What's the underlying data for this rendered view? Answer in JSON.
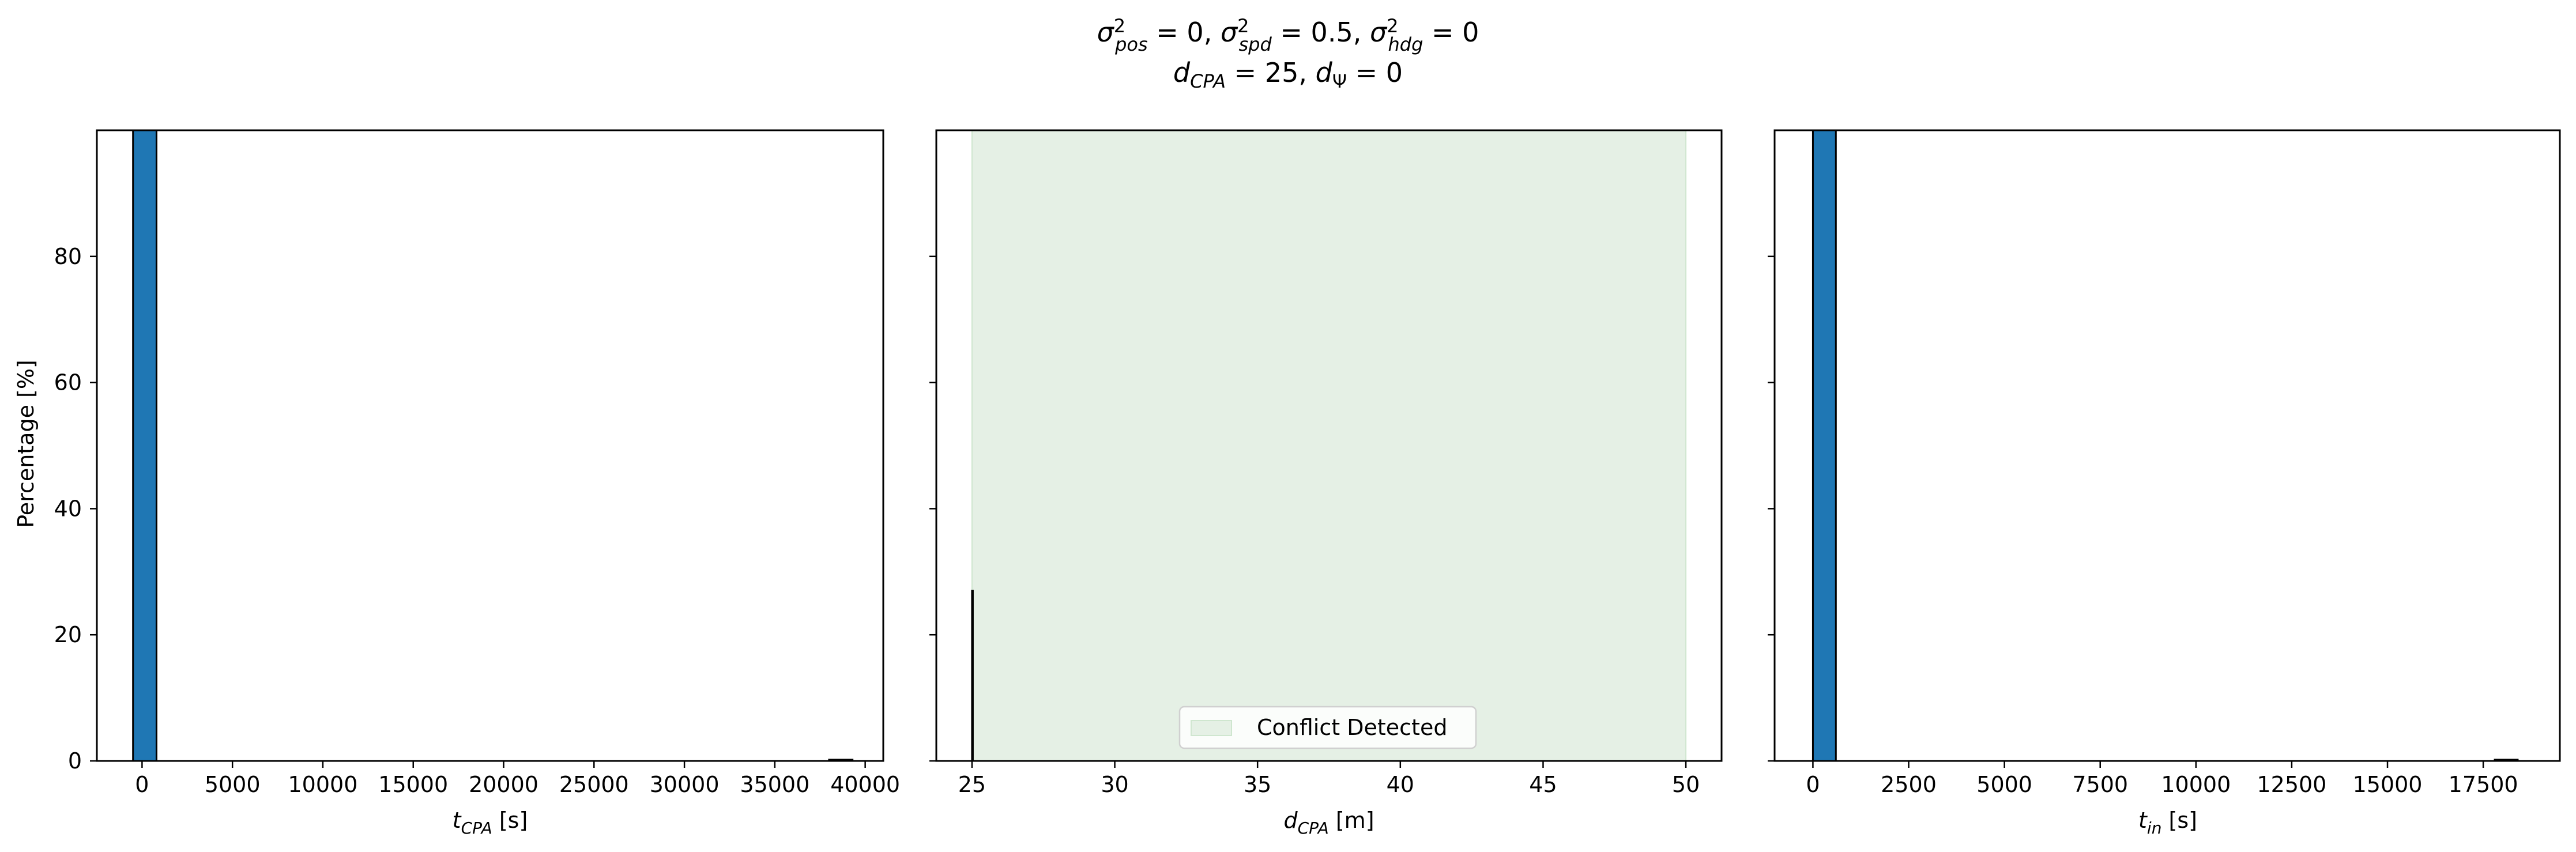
{
  "suptitle": {
    "line1": "σ²pos = 0, σ²spd = 0.5, σ²hdg = 0",
    "line2": "dCPA = 25, dΨ = 0"
  },
  "ylabel": "Percentage [%]",
  "chart_data": [
    {
      "type": "bar",
      "title": "",
      "xlabel": "t_CPA [s]",
      "xlabel_main": "t",
      "xlabel_sub": "CPA",
      "xlabel_unit": " [s]",
      "ylabel": "Percentage [%]",
      "xlim": [
        -2500,
        41000
      ],
      "ylim": [
        0,
        100
      ],
      "xticks": [
        0,
        5000,
        10000,
        15000,
        20000,
        25000,
        30000,
        35000,
        40000
      ],
      "yticks": [
        0,
        20,
        40,
        60,
        80
      ],
      "bin_width": 1300,
      "bars": [
        {
          "x_start": -500,
          "x_end": 800,
          "value": 100
        },
        {
          "x_start": 38000,
          "x_end": 39300,
          "value": 0.2
        }
      ],
      "bar_color": "#1f77b4"
    },
    {
      "type": "bar",
      "title": "",
      "xlabel": "d_CPA [m]",
      "xlabel_main": "d",
      "xlabel_sub": "CPA",
      "xlabel_unit": " [m]",
      "xlim": [
        23.75,
        51.25
      ],
      "ylim": [
        0,
        100
      ],
      "xticks": [
        25,
        30,
        35,
        40,
        45,
        50
      ],
      "yticks": [
        0,
        20,
        40,
        60,
        80
      ],
      "bars": [
        {
          "x_start": 25.0,
          "x_end": 25.03,
          "value": 27
        }
      ],
      "bar_color": "#1f77b4",
      "shaded_region": {
        "x_start": 25,
        "x_end": 50,
        "color": "#e5f0e5",
        "edge": "#cfe6cf"
      },
      "legend": {
        "label": "Conflict Detected",
        "position": "lower center"
      }
    },
    {
      "type": "bar",
      "title": "",
      "xlabel": "t_in [s]",
      "xlabel_main": "t",
      "xlabel_sub": "in",
      "xlabel_unit": " [s]",
      "xlim": [
        -1000,
        19500
      ],
      "ylim": [
        0,
        100
      ],
      "xticks": [
        0,
        2500,
        5000,
        7500,
        10000,
        12500,
        15000,
        17500
      ],
      "yticks": [
        0,
        20,
        40,
        60,
        80
      ],
      "bars": [
        {
          "x_start": 0,
          "x_end": 600,
          "value": 100
        },
        {
          "x_start": 17800,
          "x_end": 18400,
          "value": 0.2
        }
      ],
      "bar_color": "#1f77b4"
    }
  ]
}
